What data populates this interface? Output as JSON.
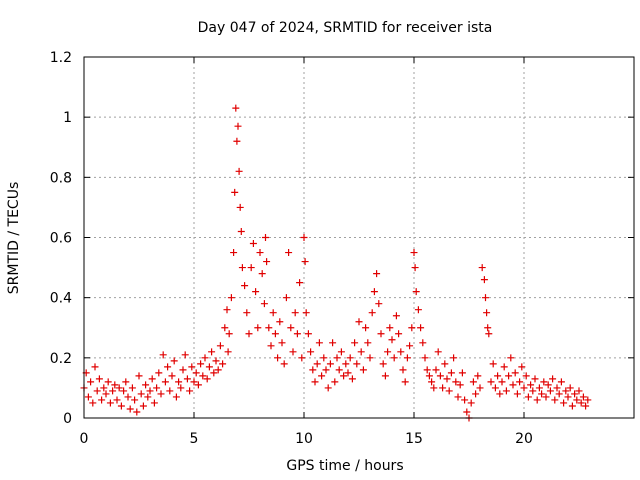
{
  "chart_data": {
    "type": "scatter",
    "title": "Day 047 of 2024, SRMTID for receiver ista",
    "xlabel": "GPS time / hours",
    "ylabel": "SRMTID / TECUs",
    "xlim": [
      0,
      25
    ],
    "ylim": [
      0,
      1.2
    ],
    "xticks": [
      0,
      5,
      10,
      15,
      20
    ],
    "xtick_labels": [
      "0",
      "5",
      "10",
      "15",
      "20"
    ],
    "yticks": [
      0,
      0.2,
      0.4,
      0.6,
      0.8,
      1,
      1.2
    ],
    "ytick_labels": [
      "0",
      "0.2",
      "0.4",
      "0.6",
      "0.8",
      "1",
      "1.2"
    ],
    "grid": true,
    "marker": "+",
    "color": "#e00000",
    "series": [
      {
        "name": "ista",
        "points": [
          [
            0.0,
            0.1
          ],
          [
            0.1,
            0.15
          ],
          [
            0.2,
            0.07
          ],
          [
            0.3,
            0.12
          ],
          [
            0.4,
            0.05
          ],
          [
            0.5,
            0.17
          ],
          [
            0.6,
            0.09
          ],
          [
            0.7,
            0.13
          ],
          [
            0.8,
            0.06
          ],
          [
            0.9,
            0.1
          ],
          [
            1.0,
            0.08
          ],
          [
            1.1,
            0.12
          ],
          [
            1.2,
            0.05
          ],
          [
            1.3,
            0.09
          ],
          [
            1.4,
            0.11
          ],
          [
            1.5,
            0.06
          ],
          [
            1.6,
            0.1
          ],
          [
            1.7,
            0.04
          ],
          [
            1.8,
            0.09
          ],
          [
            1.9,
            0.12
          ],
          [
            2.0,
            0.07
          ],
          [
            2.1,
            0.03
          ],
          [
            2.2,
            0.1
          ],
          [
            2.3,
            0.06
          ],
          [
            2.4,
            0.02
          ],
          [
            2.5,
            0.14
          ],
          [
            2.6,
            0.08
          ],
          [
            2.7,
            0.04
          ],
          [
            2.8,
            0.11
          ],
          [
            2.9,
            0.07
          ],
          [
            3.0,
            0.09
          ],
          [
            3.1,
            0.13
          ],
          [
            3.2,
            0.05
          ],
          [
            3.3,
            0.1
          ],
          [
            3.4,
            0.15
          ],
          [
            3.5,
            0.08
          ],
          [
            3.6,
            0.21
          ],
          [
            3.7,
            0.12
          ],
          [
            3.8,
            0.17
          ],
          [
            3.9,
            0.09
          ],
          [
            4.0,
            0.14
          ],
          [
            4.1,
            0.19
          ],
          [
            4.2,
            0.07
          ],
          [
            4.3,
            0.12
          ],
          [
            4.4,
            0.1
          ],
          [
            4.5,
            0.16
          ],
          [
            4.6,
            0.21
          ],
          [
            4.7,
            0.13
          ],
          [
            4.8,
            0.09
          ],
          [
            4.9,
            0.17
          ],
          [
            5.0,
            0.12
          ],
          [
            5.1,
            0.15
          ],
          [
            5.2,
            0.11
          ],
          [
            5.3,
            0.18
          ],
          [
            5.4,
            0.14
          ],
          [
            5.5,
            0.2
          ],
          [
            5.6,
            0.13
          ],
          [
            5.7,
            0.17
          ],
          [
            5.8,
            0.22
          ],
          [
            5.9,
            0.15
          ],
          [
            6.0,
            0.19
          ],
          [
            6.1,
            0.16
          ],
          [
            6.2,
            0.24
          ],
          [
            6.3,
            0.18
          ],
          [
            6.4,
            0.3
          ],
          [
            6.5,
            0.36
          ],
          [
            6.55,
            0.22
          ],
          [
            6.6,
            0.28
          ],
          [
            6.7,
            0.4
          ],
          [
            6.8,
            0.55
          ],
          [
            6.85,
            0.75
          ],
          [
            6.9,
            1.03
          ],
          [
            6.95,
            0.92
          ],
          [
            7.0,
            0.97
          ],
          [
            7.05,
            0.82
          ],
          [
            7.1,
            0.7
          ],
          [
            7.15,
            0.62
          ],
          [
            7.2,
            0.5
          ],
          [
            7.3,
            0.44
          ],
          [
            7.4,
            0.35
          ],
          [
            7.5,
            0.28
          ],
          [
            7.6,
            0.5
          ],
          [
            7.7,
            0.58
          ],
          [
            7.8,
            0.42
          ],
          [
            7.9,
            0.3
          ],
          [
            8.0,
            0.55
          ],
          [
            8.1,
            0.48
          ],
          [
            8.2,
            0.38
          ],
          [
            8.25,
            0.6
          ],
          [
            8.3,
            0.52
          ],
          [
            8.4,
            0.3
          ],
          [
            8.5,
            0.24
          ],
          [
            8.6,
            0.35
          ],
          [
            8.7,
            0.28
          ],
          [
            8.8,
            0.2
          ],
          [
            8.9,
            0.32
          ],
          [
            9.0,
            0.25
          ],
          [
            9.1,
            0.18
          ],
          [
            9.2,
            0.4
          ],
          [
            9.3,
            0.55
          ],
          [
            9.4,
            0.3
          ],
          [
            9.5,
            0.22
          ],
          [
            9.6,
            0.35
          ],
          [
            9.7,
            0.28
          ],
          [
            9.8,
            0.45
          ],
          [
            9.9,
            0.2
          ],
          [
            10.0,
            0.6
          ],
          [
            10.05,
            0.52
          ],
          [
            10.1,
            0.35
          ],
          [
            10.2,
            0.28
          ],
          [
            10.3,
            0.22
          ],
          [
            10.4,
            0.16
          ],
          [
            10.5,
            0.12
          ],
          [
            10.6,
            0.18
          ],
          [
            10.7,
            0.25
          ],
          [
            10.8,
            0.14
          ],
          [
            10.9,
            0.2
          ],
          [
            11.0,
            0.16
          ],
          [
            11.1,
            0.1
          ],
          [
            11.2,
            0.18
          ],
          [
            11.3,
            0.25
          ],
          [
            11.4,
            0.12
          ],
          [
            11.5,
            0.2
          ],
          [
            11.6,
            0.16
          ],
          [
            11.7,
            0.22
          ],
          [
            11.8,
            0.14
          ],
          [
            11.9,
            0.18
          ],
          [
            12.0,
            0.15
          ],
          [
            12.1,
            0.2
          ],
          [
            12.2,
            0.13
          ],
          [
            12.3,
            0.25
          ],
          [
            12.4,
            0.18
          ],
          [
            12.5,
            0.32
          ],
          [
            12.6,
            0.22
          ],
          [
            12.7,
            0.16
          ],
          [
            12.8,
            0.3
          ],
          [
            12.9,
            0.25
          ],
          [
            13.0,
            0.2
          ],
          [
            13.1,
            0.35
          ],
          [
            13.2,
            0.42
          ],
          [
            13.3,
            0.48
          ],
          [
            13.4,
            0.38
          ],
          [
            13.5,
            0.28
          ],
          [
            13.6,
            0.18
          ],
          [
            13.7,
            0.14
          ],
          [
            13.8,
            0.22
          ],
          [
            13.9,
            0.3
          ],
          [
            14.0,
            0.26
          ],
          [
            14.1,
            0.2
          ],
          [
            14.2,
            0.34
          ],
          [
            14.3,
            0.28
          ],
          [
            14.4,
            0.22
          ],
          [
            14.5,
            0.16
          ],
          [
            14.6,
            0.12
          ],
          [
            14.7,
            0.2
          ],
          [
            14.8,
            0.24
          ],
          [
            14.9,
            0.3
          ],
          [
            15.0,
            0.55
          ],
          [
            15.05,
            0.5
          ],
          [
            15.1,
            0.42
          ],
          [
            15.2,
            0.36
          ],
          [
            15.3,
            0.3
          ],
          [
            15.4,
            0.25
          ],
          [
            15.5,
            0.2
          ],
          [
            15.6,
            0.16
          ],
          [
            15.7,
            0.14
          ],
          [
            15.8,
            0.12
          ],
          [
            15.9,
            0.1
          ],
          [
            16.0,
            0.16
          ],
          [
            16.1,
            0.22
          ],
          [
            16.2,
            0.14
          ],
          [
            16.3,
            0.1
          ],
          [
            16.4,
            0.18
          ],
          [
            16.5,
            0.13
          ],
          [
            16.6,
            0.09
          ],
          [
            16.7,
            0.15
          ],
          [
            16.8,
            0.2
          ],
          [
            16.9,
            0.12
          ],
          [
            17.0,
            0.07
          ],
          [
            17.1,
            0.11
          ],
          [
            17.2,
            0.15
          ],
          [
            17.3,
            0.06
          ],
          [
            17.4,
            0.02
          ],
          [
            17.5,
            0.0
          ],
          [
            17.6,
            0.05
          ],
          [
            17.7,
            0.12
          ],
          [
            17.8,
            0.08
          ],
          [
            17.9,
            0.14
          ],
          [
            18.0,
            0.1
          ],
          [
            18.1,
            0.5
          ],
          [
            18.2,
            0.46
          ],
          [
            18.25,
            0.4
          ],
          [
            18.3,
            0.35
          ],
          [
            18.35,
            0.3
          ],
          [
            18.4,
            0.28
          ],
          [
            18.5,
            0.12
          ],
          [
            18.6,
            0.18
          ],
          [
            18.7,
            0.1
          ],
          [
            18.8,
            0.14
          ],
          [
            18.9,
            0.08
          ],
          [
            19.0,
            0.12
          ],
          [
            19.1,
            0.17
          ],
          [
            19.2,
            0.09
          ],
          [
            19.3,
            0.14
          ],
          [
            19.4,
            0.2
          ],
          [
            19.5,
            0.11
          ],
          [
            19.6,
            0.15
          ],
          [
            19.7,
            0.08
          ],
          [
            19.8,
            0.12
          ],
          [
            19.9,
            0.17
          ],
          [
            20.0,
            0.1
          ],
          [
            20.1,
            0.14
          ],
          [
            20.2,
            0.07
          ],
          [
            20.3,
            0.11
          ],
          [
            20.4,
            0.09
          ],
          [
            20.5,
            0.13
          ],
          [
            20.6,
            0.06
          ],
          [
            20.7,
            0.1
          ],
          [
            20.8,
            0.08
          ],
          [
            20.9,
            0.12
          ],
          [
            21.0,
            0.07
          ],
          [
            21.1,
            0.11
          ],
          [
            21.2,
            0.09
          ],
          [
            21.3,
            0.13
          ],
          [
            21.4,
            0.06
          ],
          [
            21.5,
            0.1
          ],
          [
            21.6,
            0.08
          ],
          [
            21.7,
            0.12
          ],
          [
            21.8,
            0.05
          ],
          [
            21.9,
            0.09
          ],
          [
            22.0,
            0.07
          ],
          [
            22.1,
            0.1
          ],
          [
            22.2,
            0.04
          ],
          [
            22.3,
            0.08
          ],
          [
            22.4,
            0.06
          ],
          [
            22.5,
            0.09
          ],
          [
            22.6,
            0.05
          ],
          [
            22.7,
            0.07
          ],
          [
            22.8,
            0.04
          ],
          [
            22.9,
            0.06
          ]
        ]
      }
    ]
  }
}
